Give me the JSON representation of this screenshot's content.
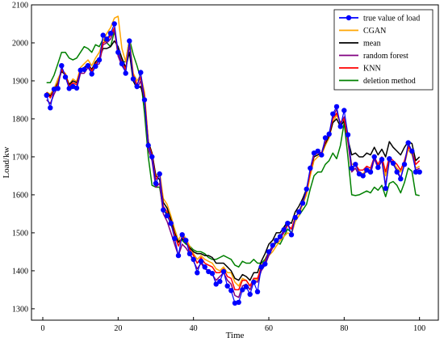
{
  "chart_data": {
    "type": "line",
    "xlabel": "Time",
    "ylabel": "Load/kw",
    "xlim": [
      -3,
      105
    ],
    "ylim": [
      1270,
      2100
    ],
    "xticks": [
      0,
      20,
      40,
      60,
      80,
      100
    ],
    "yticks": [
      1300,
      1400,
      1500,
      1600,
      1700,
      1800,
      1900,
      2000,
      2100
    ],
    "legend_position": "top-right",
    "x": [
      1,
      2,
      3,
      4,
      5,
      6,
      7,
      8,
      9,
      10,
      11,
      12,
      13,
      14,
      15,
      16,
      17,
      18,
      19,
      20,
      21,
      22,
      23,
      24,
      25,
      26,
      27,
      28,
      29,
      30,
      31,
      32,
      33,
      34,
      35,
      36,
      37,
      38,
      39,
      40,
      41,
      42,
      43,
      44,
      45,
      46,
      47,
      48,
      49,
      50,
      51,
      52,
      53,
      54,
      55,
      56,
      57,
      58,
      59,
      60,
      61,
      62,
      63,
      64,
      65,
      66,
      67,
      68,
      69,
      70,
      71,
      72,
      73,
      74,
      75,
      76,
      77,
      78,
      79,
      80,
      81,
      82,
      83,
      84,
      85,
      86,
      87,
      88,
      89,
      90,
      91,
      92,
      93,
      94,
      95,
      96,
      97,
      98,
      99,
      100
    ],
    "series": [
      {
        "name": "true value of load",
        "color": "#0000ff",
        "markers": true,
        "values": [
          1862,
          1829,
          1878,
          1880,
          1940,
          1910,
          1880,
          1885,
          1881,
          1928,
          1930,
          1940,
          1918,
          1938,
          1955,
          2020,
          2010,
          2025,
          2050,
          1975,
          1945,
          1920,
          2005,
          1905,
          1885,
          1922,
          1850,
          1730,
          1700,
          1630,
          1655,
          1560,
          1545,
          1525,
          1485,
          1440,
          1495,
          1480,
          1445,
          1430,
          1395,
          1425,
          1410,
          1398,
          1393,
          1365,
          1372,
          1398,
          1360,
          1348,
          1315,
          1317,
          1350,
          1358,
          1338,
          1370,
          1345,
          1410,
          1418,
          1450,
          1467,
          1480,
          1490,
          1508,
          1525,
          1495,
          1540,
          1555,
          1578,
          1615,
          1670,
          1710,
          1715,
          1705,
          1750,
          1760,
          1813,
          1832,
          1780,
          1822,
          1758,
          1670,
          1680,
          1655,
          1650,
          1665,
          1660,
          1700,
          1672,
          1693,
          1617,
          1695,
          1683,
          1660,
          1642,
          1680,
          1737,
          1715,
          1660,
          1660
        ]
      },
      {
        "name": "CGAN",
        "color": "#ffa500",
        "markers": false,
        "values": [
          1870,
          1865,
          1880,
          1905,
          1925,
          1920,
          1890,
          1905,
          1898,
          1935,
          1945,
          1955,
          1940,
          1960,
          1975,
          2005,
          2025,
          2040,
          2065,
          2070,
          1985,
          1950,
          2010,
          1920,
          1900,
          1915,
          1870,
          1740,
          1710,
          1650,
          1660,
          1590,
          1575,
          1545,
          1510,
          1480,
          1500,
          1485,
          1465,
          1445,
          1430,
          1440,
          1430,
          1425,
          1420,
          1405,
          1400,
          1410,
          1395,
          1395,
          1370,
          1360,
          1380,
          1375,
          1360,
          1380,
          1375,
          1415,
          1425,
          1440,
          1450,
          1465,
          1480,
          1490,
          1500,
          1495,
          1530,
          1545,
          1575,
          1600,
          1650,
          1690,
          1700,
          1705,
          1730,
          1750,
          1790,
          1810,
          1790,
          1800,
          1740,
          1680,
          1680,
          1660,
          1655,
          1670,
          1665,
          1695,
          1675,
          1690,
          1650,
          1690,
          1685,
          1670,
          1660,
          1680,
          1720,
          1705,
          1670,
          1675
        ]
      },
      {
        "name": "mean",
        "color": "#000000",
        "markers": false,
        "values": [
          1870,
          1860,
          1875,
          1895,
          1925,
          1915,
          1890,
          1900,
          1895,
          1925,
          1935,
          1945,
          1930,
          1950,
          1960,
          1985,
          1985,
          1990,
          2005,
          1990,
          1960,
          1935,
          1975,
          1900,
          1880,
          1885,
          1850,
          1740,
          1710,
          1650,
          1640,
          1580,
          1565,
          1535,
          1500,
          1475,
          1485,
          1475,
          1460,
          1450,
          1445,
          1445,
          1440,
          1440,
          1435,
          1420,
          1420,
          1420,
          1410,
          1400,
          1380,
          1375,
          1390,
          1385,
          1375,
          1395,
          1395,
          1425,
          1445,
          1470,
          1480,
          1500,
          1500,
          1515,
          1530,
          1525,
          1555,
          1570,
          1590,
          1615,
          1660,
          1700,
          1705,
          1710,
          1735,
          1755,
          1790,
          1800,
          1780,
          1795,
          1745,
          1705,
          1710,
          1700,
          1700,
          1710,
          1705,
          1725,
          1705,
          1720,
          1700,
          1740,
          1725,
          1715,
          1705,
          1725,
          1740,
          1735,
          1690,
          1700
        ]
      },
      {
        "name": "random forest",
        "color": "#800080",
        "markers": false,
        "values": [
          1850,
          1840,
          1865,
          1885,
          1935,
          1915,
          1880,
          1890,
          1880,
          1920,
          1920,
          1935,
          1920,
          1940,
          1945,
          1995,
          2000,
          2010,
          2035,
          1965,
          1940,
          1925,
          1995,
          1910,
          1880,
          1900,
          1850,
          1720,
          1690,
          1620,
          1630,
          1550,
          1530,
          1500,
          1470,
          1440,
          1470,
          1460,
          1445,
          1425,
          1405,
          1420,
          1405,
          1400,
          1390,
          1375,
          1385,
          1395,
          1375,
          1365,
          1335,
          1330,
          1360,
          1365,
          1350,
          1375,
          1370,
          1400,
          1415,
          1440,
          1460,
          1480,
          1485,
          1500,
          1520,
          1510,
          1540,
          1555,
          1580,
          1610,
          1665,
          1710,
          1715,
          1710,
          1745,
          1760,
          1805,
          1825,
          1785,
          1805,
          1740,
          1660,
          1670,
          1650,
          1650,
          1665,
          1655,
          1695,
          1670,
          1690,
          1625,
          1690,
          1680,
          1665,
          1645,
          1680,
          1730,
          1715,
          1665,
          1670
        ]
      },
      {
        "name": "KNN",
        "color": "#ff0000",
        "markers": false,
        "values": [
          1870,
          1855,
          1875,
          1890,
          1930,
          1915,
          1885,
          1895,
          1890,
          1930,
          1930,
          1945,
          1925,
          1945,
          1955,
          2000,
          2005,
          2020,
          2040,
          1975,
          1950,
          1930,
          2000,
          1915,
          1890,
          1910,
          1860,
          1735,
          1705,
          1640,
          1655,
          1570,
          1555,
          1525,
          1495,
          1465,
          1490,
          1480,
          1455,
          1440,
          1420,
          1435,
          1420,
          1415,
          1410,
          1395,
          1395,
          1405,
          1385,
          1380,
          1350,
          1350,
          1375,
          1375,
          1360,
          1380,
          1380,
          1410,
          1425,
          1450,
          1465,
          1480,
          1490,
          1505,
          1520,
          1510,
          1540,
          1555,
          1580,
          1610,
          1660,
          1705,
          1710,
          1710,
          1740,
          1760,
          1800,
          1815,
          1790,
          1800,
          1750,
          1670,
          1680,
          1665,
          1665,
          1675,
          1670,
          1700,
          1680,
          1700,
          1660,
          1700,
          1690,
          1680,
          1665,
          1690,
          1725,
          1715,
          1680,
          1690
        ]
      },
      {
        "name": "deletion method",
        "color": "#008000",
        "markers": false,
        "values": [
          1895,
          1895,
          1915,
          1945,
          1975,
          1975,
          1960,
          1955,
          1960,
          1975,
          1990,
          1985,
          1975,
          1995,
          1990,
          2010,
          2000,
          1990,
          2030,
          1980,
          1950,
          1950,
          2010,
          1970,
          1940,
          1905,
          1815,
          1700,
          1625,
          1620,
          1620,
          1560,
          1550,
          1520,
          1500,
          1480,
          1480,
          1470,
          1465,
          1455,
          1450,
          1450,
          1445,
          1435,
          1430,
          1430,
          1435,
          1440,
          1435,
          1430,
          1415,
          1410,
          1425,
          1420,
          1420,
          1430,
          1420,
          1420,
          1430,
          1450,
          1460,
          1475,
          1470,
          1490,
          1510,
          1500,
          1530,
          1545,
          1560,
          1575,
          1615,
          1650,
          1660,
          1660,
          1680,
          1690,
          1710,
          1695,
          1730,
          1790,
          1700,
          1600,
          1598,
          1600,
          1605,
          1610,
          1605,
          1620,
          1612,
          1625,
          1595,
          1630,
          1635,
          1625,
          1605,
          1632,
          1670,
          1662,
          1600,
          1598
        ]
      }
    ]
  }
}
